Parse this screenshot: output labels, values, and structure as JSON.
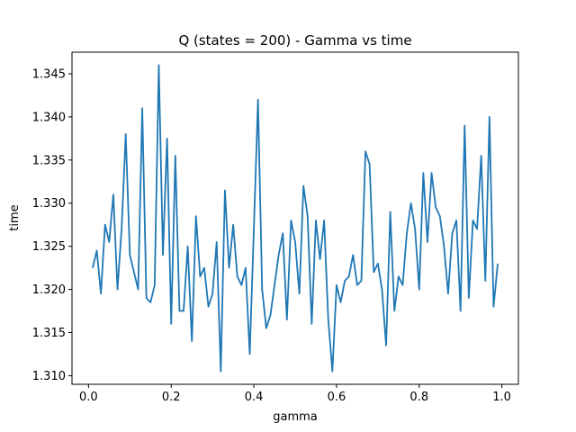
{
  "chart_data": {
    "type": "line",
    "title": "Q (states = 200) - Gamma vs time",
    "xlabel": "gamma",
    "ylabel": "time",
    "xlim": [
      -0.04,
      1.04
    ],
    "ylim": [
      1.309,
      1.3475
    ],
    "xticks": [
      0.0,
      0.2,
      0.4,
      0.6,
      0.8,
      1.0
    ],
    "xtick_labels": [
      "0.0",
      "0.2",
      "0.4",
      "0.6",
      "0.8",
      "1.0"
    ],
    "yticks": [
      1.31,
      1.315,
      1.32,
      1.325,
      1.33,
      1.335,
      1.34,
      1.345
    ],
    "ytick_labels": [
      "1.310",
      "1.315",
      "1.320",
      "1.325",
      "1.330",
      "1.335",
      "1.340",
      "1.345"
    ],
    "grid": false,
    "line_color": "#1f77b4",
    "series": [
      {
        "x": [
          0.01,
          0.02,
          0.03,
          0.04,
          0.05,
          0.06,
          0.07,
          0.08,
          0.09,
          0.1,
          0.11,
          0.12,
          0.13,
          0.14,
          0.15,
          0.16,
          0.17,
          0.18,
          0.19,
          0.2,
          0.21,
          0.22,
          0.23,
          0.24,
          0.25,
          0.26,
          0.27,
          0.28,
          0.29,
          0.3,
          0.31,
          0.32,
          0.33,
          0.34,
          0.35,
          0.36,
          0.37,
          0.38,
          0.39,
          0.4,
          0.41,
          0.42,
          0.43,
          0.44,
          0.45,
          0.46,
          0.47,
          0.48,
          0.49,
          0.5,
          0.51,
          0.52,
          0.53,
          0.54,
          0.55,
          0.56,
          0.57,
          0.58,
          0.59,
          0.6,
          0.61,
          0.62,
          0.63,
          0.64,
          0.65,
          0.66,
          0.67,
          0.68,
          0.69,
          0.7,
          0.71,
          0.72,
          0.73,
          0.74,
          0.75,
          0.76,
          0.77,
          0.78,
          0.79,
          0.8,
          0.81,
          0.82,
          0.83,
          0.84,
          0.85,
          0.86,
          0.87,
          0.88,
          0.89,
          0.9,
          0.91,
          0.92,
          0.93,
          0.94,
          0.95,
          0.96,
          0.97,
          0.98,
          0.99
        ],
        "y": [
          1.3225,
          1.3245,
          1.3195,
          1.3275,
          1.3255,
          1.331,
          1.32,
          1.327,
          1.338,
          1.324,
          1.322,
          1.32,
          1.341,
          1.319,
          1.3185,
          1.3205,
          1.346,
          1.324,
          1.3375,
          1.316,
          1.3355,
          1.3175,
          1.3175,
          1.325,
          1.314,
          1.3285,
          1.3215,
          1.3225,
          1.318,
          1.3195,
          1.3255,
          1.3105,
          1.3315,
          1.3225,
          1.3275,
          1.3215,
          1.3205,
          1.3225,
          1.3125,
          1.327,
          1.342,
          1.32,
          1.3155,
          1.317,
          1.3205,
          1.324,
          1.3265,
          1.3165,
          1.328,
          1.3255,
          1.3195,
          1.332,
          1.3285,
          1.316,
          1.328,
          1.3235,
          1.328,
          1.3165,
          1.3105,
          1.3205,
          1.3185,
          1.321,
          1.3215,
          1.324,
          1.3205,
          1.321,
          1.336,
          1.3345,
          1.322,
          1.323,
          1.32,
          1.3135,
          1.329,
          1.3175,
          1.3215,
          1.3205,
          1.3265,
          1.33,
          1.327,
          1.32,
          1.3335,
          1.3255,
          1.3335,
          1.3295,
          1.3285,
          1.325,
          1.3195,
          1.3265,
          1.328,
          1.3175,
          1.339,
          1.319,
          1.328,
          1.327,
          1.3355,
          1.321,
          1.34,
          1.318,
          1.323
        ]
      }
    ]
  }
}
